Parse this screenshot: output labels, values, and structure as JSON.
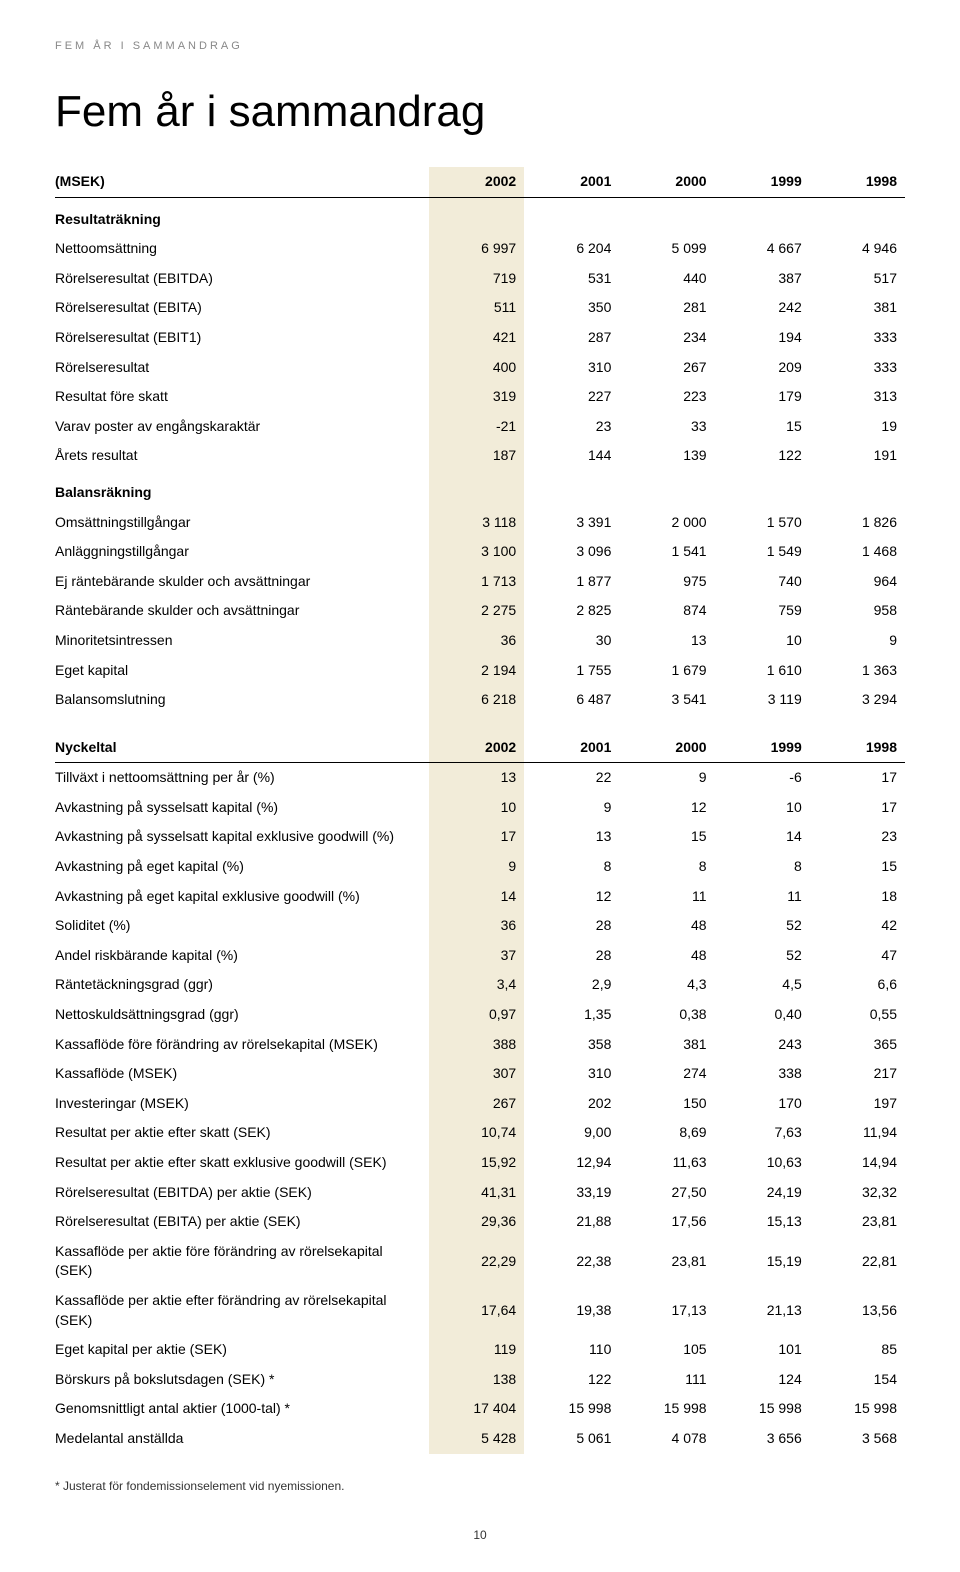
{
  "header_caps": "Fem år i sammandrag",
  "title": "Fem år i sammandrag",
  "years": [
    "2002",
    "2001",
    "2000",
    "1999",
    "1998"
  ],
  "label_msek": "(MSEK)",
  "section_resultat": "Resultaträkning",
  "rows_resultat": [
    {
      "l": "Nettoomsättning",
      "v": [
        "6 997",
        "6 204",
        "5 099",
        "4 667",
        "4 946"
      ]
    },
    {
      "l": "Rörelseresultat (EBITDA)",
      "v": [
        "719",
        "531",
        "440",
        "387",
        "517"
      ]
    },
    {
      "l": "Rörelseresultat (EBITA)",
      "v": [
        "511",
        "350",
        "281",
        "242",
        "381"
      ]
    },
    {
      "l": "Rörelseresultat (EBIT1)",
      "v": [
        "421",
        "287",
        "234",
        "194",
        "333"
      ]
    },
    {
      "l": "Rörelseresultat",
      "v": [
        "400",
        "310",
        "267",
        "209",
        "333"
      ]
    },
    {
      "l": "Resultat före skatt",
      "v": [
        "319",
        "227",
        "223",
        "179",
        "313"
      ]
    },
    {
      "l": "Varav poster av engångskaraktär",
      "v": [
        "-21",
        "23",
        "33",
        "15",
        "19"
      ]
    },
    {
      "l": "Årets resultat",
      "v": [
        "187",
        "144",
        "139",
        "122",
        "191"
      ]
    }
  ],
  "section_balans": "Balansräkning",
  "rows_balans": [
    {
      "l": "Omsättningstillgångar",
      "v": [
        "3 118",
        "3 391",
        "2 000",
        "1 570",
        "1 826"
      ]
    },
    {
      "l": "Anläggningstillgångar",
      "v": [
        "3 100",
        "3 096",
        "1 541",
        "1 549",
        "1 468"
      ]
    },
    {
      "l": "Ej räntebärande skulder och avsättningar",
      "v": [
        "1 713",
        "1 877",
        "975",
        "740",
        "964"
      ]
    },
    {
      "l": "Räntebärande skulder och avsättningar",
      "v": [
        "2 275",
        "2 825",
        "874",
        "759",
        "958"
      ]
    },
    {
      "l": "Minoritetsintressen",
      "v": [
        "36",
        "30",
        "13",
        "10",
        "9"
      ]
    },
    {
      "l": "Eget kapital",
      "v": [
        "2 194",
        "1 755",
        "1 679",
        "1 610",
        "1 363"
      ]
    },
    {
      "l": "Balansomslutning",
      "v": [
        "6 218",
        "6 487",
        "3 541",
        "3 119",
        "3 294"
      ]
    }
  ],
  "label_nyckeltal": "Nyckeltal",
  "rows_nyckeltal": [
    {
      "l": "Tillväxt i nettoomsättning per år (%)",
      "v": [
        "13",
        "22",
        "9",
        "-6",
        "17"
      ]
    },
    {
      "l": "Avkastning på sysselsatt kapital (%)",
      "v": [
        "10",
        "9",
        "12",
        "10",
        "17"
      ]
    },
    {
      "l": "Avkastning på sysselsatt kapital exklusive goodwill (%)",
      "v": [
        "17",
        "13",
        "15",
        "14",
        "23"
      ]
    },
    {
      "l": "Avkastning på eget kapital (%)",
      "v": [
        "9",
        "8",
        "8",
        "8",
        "15"
      ]
    },
    {
      "l": "Avkastning på eget kapital exklusive goodwill (%)",
      "v": [
        "14",
        "12",
        "11",
        "11",
        "18"
      ]
    },
    {
      "l": "Soliditet (%)",
      "v": [
        "36",
        "28",
        "48",
        "52",
        "42"
      ]
    },
    {
      "l": "Andel riskbärande kapital (%)",
      "v": [
        "37",
        "28",
        "48",
        "52",
        "47"
      ]
    },
    {
      "l": "Räntetäckningsgrad (ggr)",
      "v": [
        "3,4",
        "2,9",
        "4,3",
        "4,5",
        "6,6"
      ]
    },
    {
      "l": "Nettoskuldsättningsgrad (ggr)",
      "v": [
        "0,97",
        "1,35",
        "0,38",
        "0,40",
        "0,55"
      ]
    },
    {
      "l": "Kassaflöde före förändring av rörelsekapital (MSEK)",
      "v": [
        "388",
        "358",
        "381",
        "243",
        "365"
      ]
    },
    {
      "l": "Kassaflöde (MSEK)",
      "v": [
        "307",
        "310",
        "274",
        "338",
        "217"
      ]
    },
    {
      "l": "Investeringar (MSEK)",
      "v": [
        "267",
        "202",
        "150",
        "170",
        "197"
      ]
    },
    {
      "l": "Resultat per aktie efter skatt (SEK)",
      "v": [
        "10,74",
        "9,00",
        "8,69",
        "7,63",
        "11,94"
      ]
    },
    {
      "l": "Resultat per aktie efter skatt exklusive goodwill (SEK)",
      "v": [
        "15,92",
        "12,94",
        "11,63",
        "10,63",
        "14,94"
      ]
    },
    {
      "l": "Rörelseresultat (EBITDA) per aktie (SEK)",
      "v": [
        "41,31",
        "33,19",
        "27,50",
        "24,19",
        "32,32"
      ]
    },
    {
      "l": "Rörelseresultat (EBITA) per aktie (SEK)",
      "v": [
        "29,36",
        "21,88",
        "17,56",
        "15,13",
        "23,81"
      ]
    },
    {
      "l": "Kassaflöde per aktie före förändring av rörelsekapital (SEK)",
      "v": [
        "22,29",
        "22,38",
        "23,81",
        "15,19",
        "22,81"
      ]
    },
    {
      "l": "Kassaflöde per aktie efter förändring av rörelsekapital (SEK)",
      "v": [
        "17,64",
        "19,38",
        "17,13",
        "21,13",
        "13,56"
      ]
    },
    {
      "l": "Eget kapital per aktie (SEK)",
      "v": [
        "119",
        "110",
        "105",
        "101",
        "85"
      ]
    },
    {
      "l": "Börskurs på bokslutsdagen (SEK) *",
      "v": [
        "138",
        "122",
        "111",
        "124",
        "154"
      ]
    },
    {
      "l": "Genomsnittligt antal aktier (1000-tal) *",
      "v": [
        "17 404",
        "15 998",
        "15 998",
        "15 998",
        "15 998"
      ]
    },
    {
      "l": "Medelantal anställda",
      "v": [
        "5 428",
        "5 061",
        "4 078",
        "3 656",
        "3 568"
      ]
    }
  ],
  "footnote": "* Justerat för fondemissionselement vid nyemissionen.",
  "pagenum": "10",
  "colors": {
    "highlight_bg": "#f2ecd9",
    "text": "#000000",
    "header_grey": "#888888"
  }
}
